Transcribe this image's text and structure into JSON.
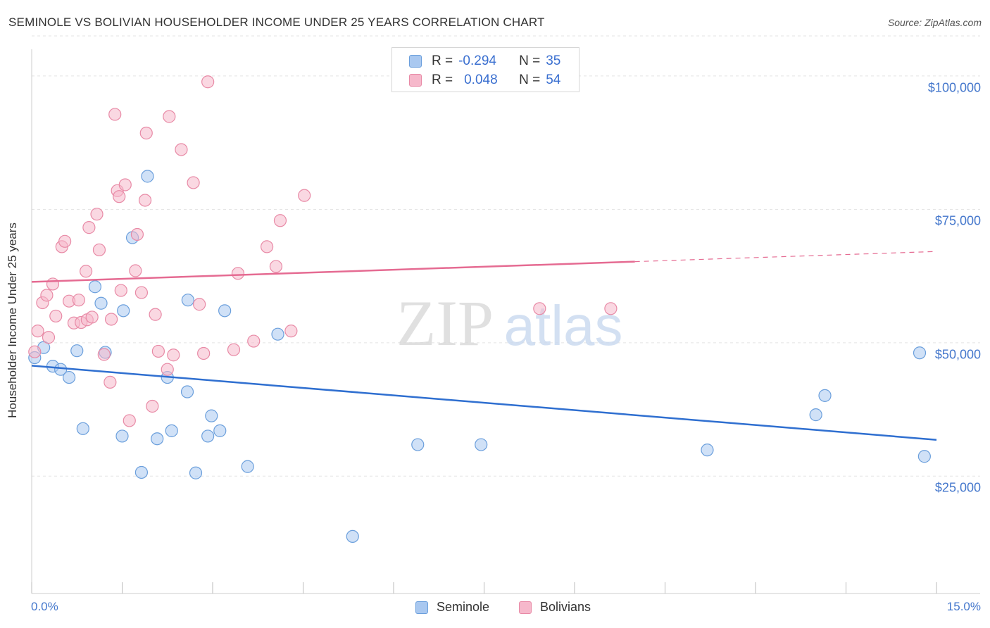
{
  "header": {
    "title": "SEMINOLE VS BOLIVIAN HOUSEHOLDER INCOME UNDER 25 YEARS CORRELATION CHART",
    "source": "Source: ZipAtlas.com"
  },
  "watermark": {
    "zip": "ZIP",
    "atlas": "atlas"
  },
  "legend": {
    "r_label": "R =",
    "n_label": "N =",
    "rows": [
      {
        "r": "-0.294",
        "n": "35",
        "color": "#a9c8f0"
      },
      {
        "r": "0.048",
        "n": "54",
        "color": "#f6b8cb"
      }
    ]
  },
  "bottom_legend": {
    "seminole": "Seminole",
    "bolivians": "Bolivians"
  },
  "chart_data": {
    "type": "scatter",
    "title": "SEMINOLE VS BOLIVIAN HOUSEHOLDER INCOME UNDER 25 YEARS CORRELATION CHART",
    "xlabel": "",
    "ylabel": "Householder Income Under 25 years",
    "x_unit": "%",
    "xlim": [
      0,
      15
    ],
    "ylim": [
      3000,
      105000
    ],
    "x_tick_labels": [
      "0.0%",
      "15.0%"
    ],
    "y_tick_labels": [
      "$25,000",
      "$50,000",
      "$75,000",
      "$100,000"
    ],
    "y_ticks": [
      25000,
      50000,
      75000,
      100000
    ],
    "grid": true,
    "legend_position": "top-center",
    "series": [
      {
        "name": "Seminole",
        "color": "#a9c8f0",
        "stroke": "#6b9fdc",
        "trend_color": "#2f6fd0",
        "trend": {
          "x0": 0.0,
          "y0": 45700,
          "x1": 15.0,
          "y1": 31800,
          "dashed_from": null
        },
        "points": [
          [
            0.05,
            47200
          ],
          [
            0.2,
            49100
          ],
          [
            0.35,
            45600
          ],
          [
            0.48,
            45000
          ],
          [
            0.62,
            43500
          ],
          [
            0.75,
            48500
          ],
          [
            0.85,
            33900
          ],
          [
            1.05,
            60500
          ],
          [
            1.15,
            57400
          ],
          [
            1.22,
            48200
          ],
          [
            1.5,
            32500
          ],
          [
            1.52,
            56000
          ],
          [
            1.67,
            69700
          ],
          [
            1.82,
            25700
          ],
          [
            1.92,
            81200
          ],
          [
            2.08,
            32000
          ],
          [
            2.25,
            43500
          ],
          [
            2.32,
            33500
          ],
          [
            2.58,
            40800
          ],
          [
            2.72,
            25600
          ],
          [
            2.59,
            58000
          ],
          [
            2.92,
            32500
          ],
          [
            2.98,
            36300
          ],
          [
            3.12,
            33500
          ],
          [
            3.2,
            56000
          ],
          [
            3.58,
            26800
          ],
          [
            4.08,
            51600
          ],
          [
            5.32,
            13700
          ],
          [
            6.4,
            30900
          ],
          [
            7.45,
            30900
          ],
          [
            11.2,
            29900
          ],
          [
            13.0,
            36500
          ],
          [
            13.15,
            40100
          ],
          [
            14.72,
            48100
          ],
          [
            14.8,
            28700
          ]
        ]
      },
      {
        "name": "Bolivians",
        "color": "#f6b8cb",
        "stroke": "#e88aa6",
        "trend_color": "#e56b92",
        "trend": {
          "x0": 0.0,
          "y0": 61400,
          "x1": 15.0,
          "y1": 67100,
          "dashed_from": 10.0
        },
        "points": [
          [
            0.05,
            48300
          ],
          [
            0.1,
            52200
          ],
          [
            0.18,
            57500
          ],
          [
            0.25,
            58900
          ],
          [
            0.28,
            51000
          ],
          [
            0.35,
            61000
          ],
          [
            0.4,
            55000
          ],
          [
            0.5,
            68000
          ],
          [
            0.55,
            69000
          ],
          [
            0.62,
            57800
          ],
          [
            0.7,
            53700
          ],
          [
            0.78,
            58000
          ],
          [
            0.82,
            53800
          ],
          [
            0.9,
            63400
          ],
          [
            0.92,
            54300
          ],
          [
            0.95,
            71600
          ],
          [
            1.0,
            54800
          ],
          [
            1.08,
            74100
          ],
          [
            1.12,
            67400
          ],
          [
            1.2,
            47800
          ],
          [
            1.3,
            42600
          ],
          [
            1.32,
            54400
          ],
          [
            1.38,
            92800
          ],
          [
            1.42,
            78500
          ],
          [
            1.45,
            77400
          ],
          [
            1.48,
            59800
          ],
          [
            1.55,
            79600
          ],
          [
            1.62,
            35400
          ],
          [
            1.72,
            63500
          ],
          [
            1.75,
            70300
          ],
          [
            1.82,
            59400
          ],
          [
            1.88,
            76700
          ],
          [
            1.9,
            89300
          ],
          [
            2.0,
            38100
          ],
          [
            2.05,
            55300
          ],
          [
            2.1,
            48400
          ],
          [
            2.25,
            45000
          ],
          [
            2.28,
            92400
          ],
          [
            2.35,
            47700
          ],
          [
            2.48,
            86200
          ],
          [
            2.68,
            80000
          ],
          [
            2.78,
            57200
          ],
          [
            2.85,
            48000
          ],
          [
            3.35,
            48700
          ],
          [
            3.42,
            63000
          ],
          [
            2.92,
            98900
          ],
          [
            3.68,
            50300
          ],
          [
            3.9,
            68000
          ],
          [
            4.05,
            64300
          ],
          [
            4.12,
            72900
          ],
          [
            4.3,
            52200
          ],
          [
            4.52,
            77600
          ],
          [
            8.42,
            56400
          ],
          [
            9.6,
            56400
          ]
        ]
      }
    ]
  }
}
